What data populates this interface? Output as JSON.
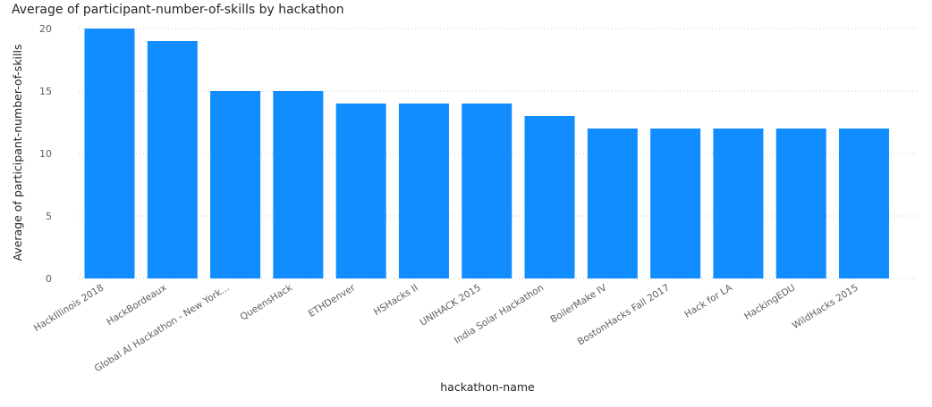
{
  "chart_data": {
    "type": "bar",
    "title": "Average of participant-number-of-skills by hackathon",
    "xlabel": "hackathon-name",
    "ylabel": "Average of participant-number-of-skills",
    "ylim": [
      0,
      20
    ],
    "yticks": [
      0,
      5,
      10,
      15,
      20
    ],
    "grid": true,
    "bar_color": "#118DFF",
    "categories": [
      "HackIllinois 2018",
      "HackBordeaux",
      "Global AI Hackathon - New York...",
      "QueensHack",
      "ETHDenver",
      "HSHacks II",
      "UNIHACK 2015",
      "India Solar Hackathon",
      "BoilerMake IV",
      "BostonHacks Fall 2017",
      "Hack for LA",
      "HackingEDU",
      "WildHacks 2015"
    ],
    "values": [
      20,
      19,
      15,
      15,
      14,
      14,
      14,
      13,
      12,
      12,
      12,
      12,
      12
    ]
  }
}
